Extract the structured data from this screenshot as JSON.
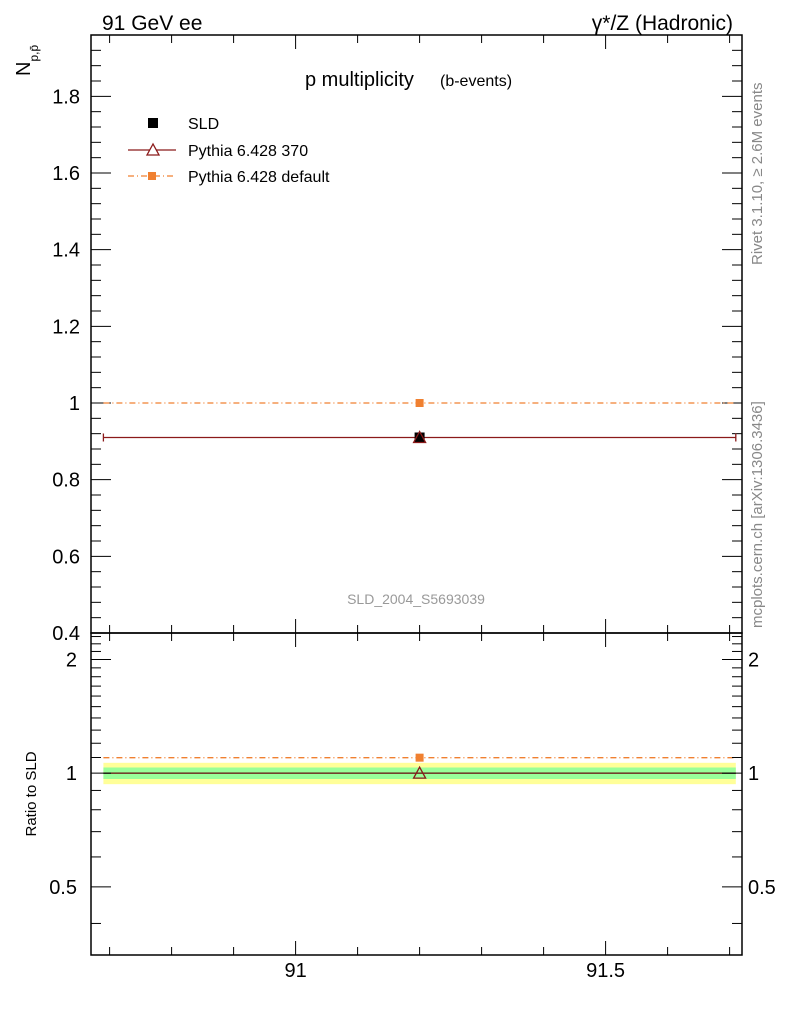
{
  "header": {
    "left": "91 GeV ee",
    "right": "γ*/Z (Hadronic)"
  },
  "side": {
    "rivet": "Rivet 3.1.10, ≥ 2.6M events",
    "mcplots": "mcplots.cern.ch [arXiv:1306.3436]"
  },
  "chart_data": [
    {
      "type": "scatter",
      "title": "p multiplicity",
      "subtitle": "(b-events)",
      "ylabel": "N",
      "ylabel_sub": "p,p̄",
      "analysis_label": "SLD_2004_S5693039",
      "xlim": [
        90.67,
        91.72
      ],
      "ylim": [
        0.4,
        1.96
      ],
      "yticks": [
        0.4,
        0.6,
        0.8,
        1,
        1.2,
        1.4,
        1.6,
        1.8
      ],
      "ytick_labels": [
        "0.4",
        "0.6",
        "0.8",
        "1",
        "1.2",
        "1.4",
        "1.6",
        "1.8"
      ],
      "x_bin": [
        90.69,
        91.71
      ],
      "x_center": 91.2,
      "legend": [
        "SLD",
        "Pythia 6.428 370",
        "Pythia 6.428 default"
      ],
      "series": [
        {
          "name": "SLD",
          "x": 91.2,
          "y": 0.91,
          "color": "#000000",
          "marker": "filled-square"
        },
        {
          "name": "Pythia 6.428 370",
          "x": 91.2,
          "y": 0.91,
          "color": "#8b1a1a",
          "marker": "open-triangle",
          "line": "solid"
        },
        {
          "name": "Pythia 6.428 default",
          "x": 91.2,
          "y": 1.0,
          "color": "#f08030",
          "marker": "filled-square",
          "line": "dash-dot"
        }
      ]
    },
    {
      "type": "scatter",
      "ylabel": "Ratio to SLD",
      "xlim": [
        90.67,
        91.72
      ],
      "ylim": [
        0.33,
        2.35
      ],
      "yscale": "log",
      "yticks": [
        0.5,
        1,
        2
      ],
      "ytick_labels": [
        "0.5",
        "1",
        "2"
      ],
      "xticks": [
        91,
        91.5
      ],
      "xtick_labels": [
        "91",
        "91.5"
      ],
      "band_outer": [
        0.935,
        1.065
      ],
      "band_inner": [
        0.965,
        1.035
      ],
      "band_outer_color": "#ffff99",
      "band_inner_color": "#99ff99",
      "series": [
        {
          "name": "SLD",
          "x": 91.2,
          "y": 1.0,
          "color": "#000000"
        },
        {
          "name": "Pythia 6.428 370",
          "x": 91.2,
          "y": 1.0,
          "color": "#8b1a1a"
        },
        {
          "name": "Pythia 6.428 default",
          "x": 91.2,
          "y": 1.099,
          "color": "#f08030"
        }
      ]
    }
  ]
}
